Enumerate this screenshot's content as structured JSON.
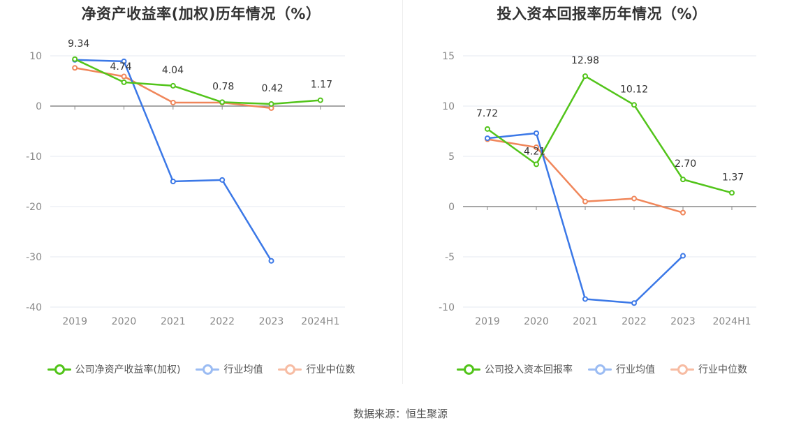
{
  "chart_data": [
    {
      "type": "line",
      "title": "净资产收益率(加权)历年情况（%）",
      "categories": [
        "2019",
        "2020",
        "2021",
        "2022",
        "2023",
        "2024H1"
      ],
      "ylim": [
        -40,
        10
      ],
      "yticks": [
        10,
        0,
        -10,
        -20,
        -30,
        -40
      ],
      "grid": true,
      "legend_position": "bottom",
      "series": [
        {
          "name": "公司净资产收益率(加权)",
          "color": "#52c41a",
          "values": [
            9.34,
            4.74,
            4.04,
            0.78,
            0.42,
            1.17
          ],
          "labels": [
            "9.34",
            "4.74",
            "4.04",
            "0.78",
            "0.42",
            "1.17"
          ]
        },
        {
          "name": "行业均值",
          "color": "#3b78e7",
          "values": [
            9.2,
            8.9,
            -15.0,
            -14.7,
            -30.8,
            null
          ]
        },
        {
          "name": "行业中位数",
          "color": "#f0865a",
          "values": [
            7.6,
            5.9,
            0.7,
            0.7,
            -0.4,
            null
          ]
        }
      ]
    },
    {
      "type": "line",
      "title": "投入资本回报率历年情况（%）",
      "categories": [
        "2019",
        "2020",
        "2021",
        "2022",
        "2023",
        "2024H1"
      ],
      "ylim": [
        -10,
        15
      ],
      "yticks": [
        15,
        10,
        5,
        0,
        -5,
        -10
      ],
      "grid": true,
      "legend_position": "bottom",
      "series": [
        {
          "name": "公司投入资本回报率",
          "color": "#52c41a",
          "values": [
            7.72,
            4.21,
            12.98,
            10.12,
            2.7,
            1.37
          ],
          "labels": [
            "7.72",
            "4.21",
            "12.98",
            "10.12",
            "2.70",
            "1.37"
          ]
        },
        {
          "name": "行业均值",
          "color": "#3b78e7",
          "values": [
            6.8,
            7.3,
            -9.2,
            -9.6,
            -4.9,
            null
          ]
        },
        {
          "name": "行业中位数",
          "color": "#f0865a",
          "values": [
            6.7,
            5.9,
            0.5,
            0.8,
            -0.6,
            null
          ]
        }
      ]
    }
  ],
  "source": "数据来源：恒生聚源"
}
